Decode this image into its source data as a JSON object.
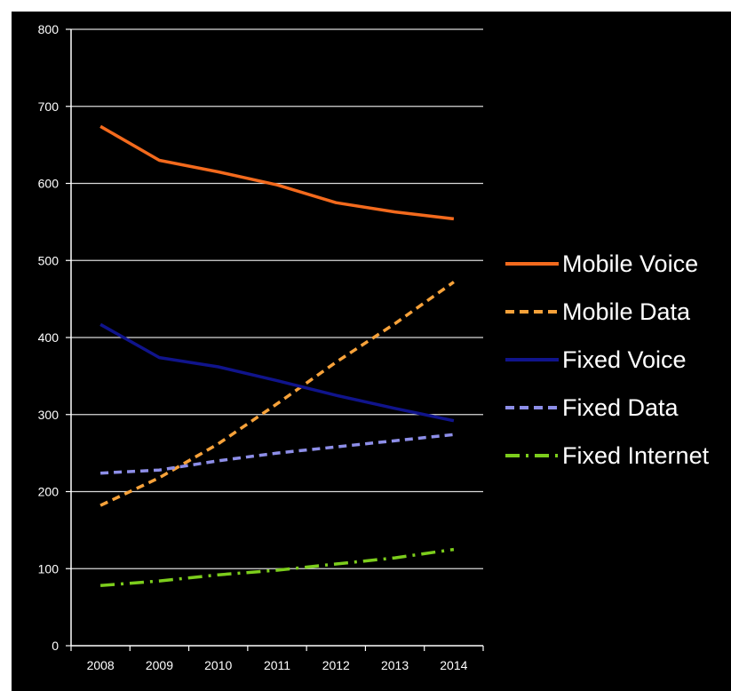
{
  "chart_data": {
    "type": "line",
    "title": "",
    "xlabel": "",
    "ylabel": "",
    "x": [
      "2008",
      "2009",
      "2010",
      "2011",
      "2012",
      "2013",
      "2014"
    ],
    "ylim": [
      0,
      800
    ],
    "yticks": [
      "0",
      "100",
      "200",
      "300",
      "400",
      "500",
      "600",
      "700",
      "800"
    ],
    "grid": "horizontal",
    "legend": "right",
    "series": [
      {
        "name": "Mobile Voice",
        "values": [
          674,
          630,
          615,
          598,
          575,
          563,
          554
        ],
        "color": "#f36a1d",
        "style": "solid"
      },
      {
        "name": "Mobile Data",
        "values": [
          182,
          218,
          262,
          314,
          368,
          418,
          472
        ],
        "color": "#f7a23a",
        "style": "dashed"
      },
      {
        "name": "Fixed Voice",
        "values": [
          417,
          374,
          362,
          344,
          325,
          308,
          292
        ],
        "color": "#10148c",
        "style": "solid"
      },
      {
        "name": "Fixed Data",
        "values": [
          224,
          228,
          240,
          250,
          258,
          266,
          274
        ],
        "color": "#8d8ee8",
        "style": "dashed"
      },
      {
        "name": "Fixed Internet",
        "values": [
          78,
          84,
          92,
          98,
          106,
          114,
          125
        ],
        "color": "#7ccd1c",
        "style": "dashdot"
      }
    ]
  }
}
